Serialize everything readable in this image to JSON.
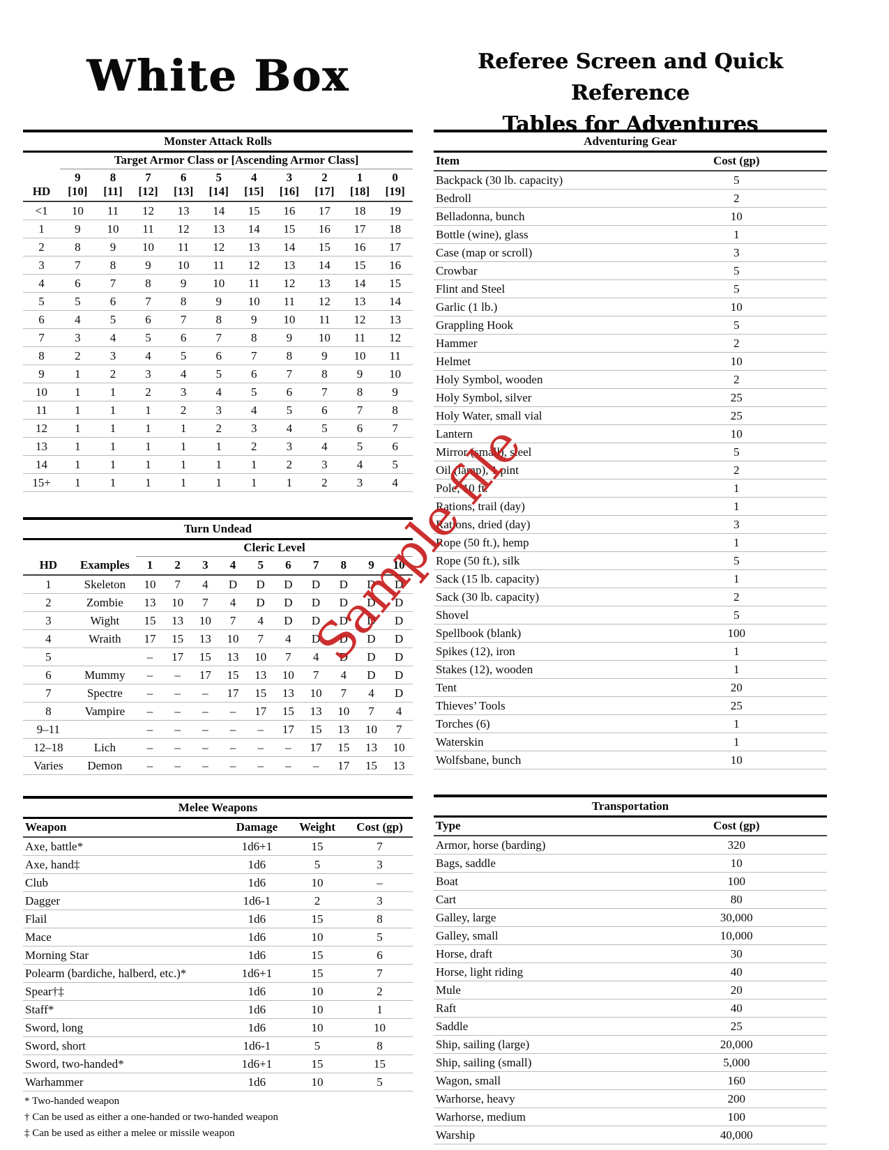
{
  "page": {
    "title_left": "White Box",
    "title_right_line1": "Referee Screen and Quick Reference",
    "title_right_line2": "Tables for Adventures",
    "watermark": {
      "text": "Sample file",
      "color": "#c81e1e"
    }
  },
  "monster_attack": {
    "title": "Monster Attack Rolls",
    "span_header": "Target Armor Class or [Ascending Armor Class]",
    "hd_label": "HD",
    "ac_row": [
      "9",
      "8",
      "7",
      "6",
      "5",
      "4",
      "3",
      "2",
      "1",
      "0"
    ],
    "aac_row": [
      "[10]",
      "[11]",
      "[12]",
      "[13]",
      "[14]",
      "[15]",
      "[16]",
      "[17]",
      "[18]",
      "[19]"
    ],
    "rows": [
      [
        "<1",
        "10",
        "11",
        "12",
        "13",
        "14",
        "15",
        "16",
        "17",
        "18",
        "19"
      ],
      [
        "1",
        "9",
        "10",
        "11",
        "12",
        "13",
        "14",
        "15",
        "16",
        "17",
        "18"
      ],
      [
        "2",
        "8",
        "9",
        "10",
        "11",
        "12",
        "13",
        "14",
        "15",
        "16",
        "17"
      ],
      [
        "3",
        "7",
        "8",
        "9",
        "10",
        "11",
        "12",
        "13",
        "14",
        "15",
        "16"
      ],
      [
        "4",
        "6",
        "7",
        "8",
        "9",
        "10",
        "11",
        "12",
        "13",
        "14",
        "15"
      ],
      [
        "5",
        "5",
        "6",
        "7",
        "8",
        "9",
        "10",
        "11",
        "12",
        "13",
        "14"
      ],
      [
        "6",
        "4",
        "5",
        "6",
        "7",
        "8",
        "9",
        "10",
        "11",
        "12",
        "13"
      ],
      [
        "7",
        "3",
        "4",
        "5",
        "6",
        "7",
        "8",
        "9",
        "10",
        "11",
        "12"
      ],
      [
        "8",
        "2",
        "3",
        "4",
        "5",
        "6",
        "7",
        "8",
        "9",
        "10",
        "11"
      ],
      [
        "9",
        "1",
        "2",
        "3",
        "4",
        "5",
        "6",
        "7",
        "8",
        "9",
        "10"
      ],
      [
        "10",
        "1",
        "1",
        "2",
        "3",
        "4",
        "5",
        "6",
        "7",
        "8",
        "9"
      ],
      [
        "11",
        "1",
        "1",
        "1",
        "2",
        "3",
        "4",
        "5",
        "6",
        "7",
        "8"
      ],
      [
        "12",
        "1",
        "1",
        "1",
        "1",
        "2",
        "3",
        "4",
        "5",
        "6",
        "7"
      ],
      [
        "13",
        "1",
        "1",
        "1",
        "1",
        "1",
        "2",
        "3",
        "4",
        "5",
        "6"
      ],
      [
        "14",
        "1",
        "1",
        "1",
        "1",
        "1",
        "1",
        "2",
        "3",
        "4",
        "5"
      ],
      [
        "15+",
        "1",
        "1",
        "1",
        "1",
        "1",
        "1",
        "1",
        "2",
        "3",
        "4"
      ]
    ]
  },
  "turn_undead": {
    "title": "Turn Undead",
    "span_header": "Cleric Level",
    "headers": [
      "HD",
      "Examples",
      "1",
      "2",
      "3",
      "4",
      "5",
      "6",
      "7",
      "8",
      "9",
      "10"
    ],
    "rows": [
      [
        "1",
        "Skeleton",
        "10",
        "7",
        "4",
        "D",
        "D",
        "D",
        "D",
        "D",
        "D",
        "D"
      ],
      [
        "2",
        "Zombie",
        "13",
        "10",
        "7",
        "4",
        "D",
        "D",
        "D",
        "D",
        "D",
        "D"
      ],
      [
        "3",
        "Wight",
        "15",
        "13",
        "10",
        "7",
        "4",
        "D",
        "D",
        "D",
        "D",
        "D"
      ],
      [
        "4",
        "Wraith",
        "17",
        "15",
        "13",
        "10",
        "7",
        "4",
        "D",
        "D",
        "D",
        "D"
      ],
      [
        "5",
        "",
        "–",
        "17",
        "15",
        "13",
        "10",
        "7",
        "4",
        "D",
        "D",
        "D"
      ],
      [
        "6",
        "Mummy",
        "–",
        "–",
        "17",
        "15",
        "13",
        "10",
        "7",
        "4",
        "D",
        "D"
      ],
      [
        "7",
        "Spectre",
        "–",
        "–",
        "–",
        "17",
        "15",
        "13",
        "10",
        "7",
        "4",
        "D"
      ],
      [
        "8",
        "Vampire",
        "–",
        "–",
        "–",
        "–",
        "17",
        "15",
        "13",
        "10",
        "7",
        "4"
      ],
      [
        "9–11",
        "",
        "–",
        "–",
        "–",
        "–",
        "–",
        "17",
        "15",
        "13",
        "10",
        "7"
      ],
      [
        "12–18",
        "Lich",
        "–",
        "–",
        "–",
        "–",
        "–",
        "–",
        "17",
        "15",
        "13",
        "10"
      ],
      [
        "Varies",
        "Demon",
        "–",
        "–",
        "–",
        "–",
        "–",
        "–",
        "–",
        "17",
        "15",
        "13"
      ]
    ]
  },
  "melee_weapons": {
    "title": "Melee Weapons",
    "headers": [
      "Weapon",
      "Damage",
      "Weight",
      "Cost (gp)"
    ],
    "rows": [
      [
        "Axe, battle*",
        "1d6+1",
        "15",
        "7"
      ],
      [
        "Axe, hand‡",
        "1d6",
        "5",
        "3"
      ],
      [
        "Club",
        "1d6",
        "10",
        "–"
      ],
      [
        "Dagger",
        "1d6-1",
        "2",
        "3"
      ],
      [
        "Flail",
        "1d6",
        "15",
        "8"
      ],
      [
        "Mace",
        "1d6",
        "10",
        "5"
      ],
      [
        "Morning Star",
        "1d6",
        "15",
        "6"
      ],
      [
        "Polearm (bardiche, halberd, etc.)*",
        "1d6+1",
        "15",
        "7"
      ],
      [
        "Spear†‡",
        "1d6",
        "10",
        "2"
      ],
      [
        "Staff*",
        "1d6",
        "10",
        "1"
      ],
      [
        "Sword, long",
        "1d6",
        "10",
        "10"
      ],
      [
        "Sword, short",
        "1d6-1",
        "5",
        "8"
      ],
      [
        "Sword, two-handed*",
        "1d6+1",
        "15",
        "15"
      ],
      [
        "Warhammer",
        "1d6",
        "10",
        "5"
      ]
    ],
    "footnotes": [
      "* Two-handed weapon",
      "† Can be used as either a one-handed or two-handed weapon",
      "‡ Can be used as either a melee or missile weapon"
    ]
  },
  "adventuring_gear": {
    "title": "Adventuring Gear",
    "headers": [
      "Item",
      "Cost (gp)"
    ],
    "rows": [
      [
        "Backpack (30 lb. capacity)",
        "5"
      ],
      [
        "Bedroll",
        "2"
      ],
      [
        "Belladonna, bunch",
        "10"
      ],
      [
        "Bottle (wine), glass",
        "1"
      ],
      [
        "Case (map or scroll)",
        "3"
      ],
      [
        "Crowbar",
        "5"
      ],
      [
        "Flint and Steel",
        "5"
      ],
      [
        "Garlic (1 lb.)",
        "10"
      ],
      [
        "Grappling Hook",
        "5"
      ],
      [
        "Hammer",
        "2"
      ],
      [
        "Helmet",
        "10"
      ],
      [
        "Holy Symbol, wooden",
        "2"
      ],
      [
        "Holy Symbol, silver",
        "25"
      ],
      [
        "Holy Water, small vial",
        "25"
      ],
      [
        "Lantern",
        "10"
      ],
      [
        "Mirror (small), steel",
        "5"
      ],
      [
        "Oil (lamp), 1 pint",
        "2"
      ],
      [
        "Pole, 10 ft.",
        "1"
      ],
      [
        "Rations, trail (day)",
        "1"
      ],
      [
        "Rations, dried (day)",
        "3"
      ],
      [
        "Rope (50 ft.), hemp",
        "1"
      ],
      [
        "Rope (50 ft.), silk",
        "5"
      ],
      [
        "Sack (15 lb. capacity)",
        "1"
      ],
      [
        "Sack (30 lb. capacity)",
        "2"
      ],
      [
        "Shovel",
        "5"
      ],
      [
        "Spellbook (blank)",
        "100"
      ],
      [
        "Spikes (12), iron",
        "1"
      ],
      [
        "Stakes (12), wooden",
        "1"
      ],
      [
        "Tent",
        "20"
      ],
      [
        "Thieves’ Tools",
        "25"
      ],
      [
        "Torches (6)",
        "1"
      ],
      [
        "Waterskin",
        "1"
      ],
      [
        "Wolfsbane, bunch",
        "10"
      ]
    ]
  },
  "transportation": {
    "title": "Transportation",
    "headers": [
      "Type",
      "Cost (gp)"
    ],
    "rows": [
      [
        "Armor, horse (barding)",
        "320"
      ],
      [
        "Bags, saddle",
        "10"
      ],
      [
        "Boat",
        "100"
      ],
      [
        "Cart",
        "80"
      ],
      [
        "Galley, large",
        "30,000"
      ],
      [
        "Galley, small",
        "10,000"
      ],
      [
        "Horse, draft",
        "30"
      ],
      [
        "Horse, light riding",
        "40"
      ],
      [
        "Mule",
        "20"
      ],
      [
        "Raft",
        "40"
      ],
      [
        "Saddle",
        "25"
      ],
      [
        "Ship, sailing (large)",
        "20,000"
      ],
      [
        "Ship, sailing (small)",
        "5,000"
      ],
      [
        "Wagon, small",
        "160"
      ],
      [
        "Warhorse, heavy",
        "200"
      ],
      [
        "Warhorse, medium",
        "100"
      ],
      [
        "Warship",
        "40,000"
      ]
    ]
  }
}
